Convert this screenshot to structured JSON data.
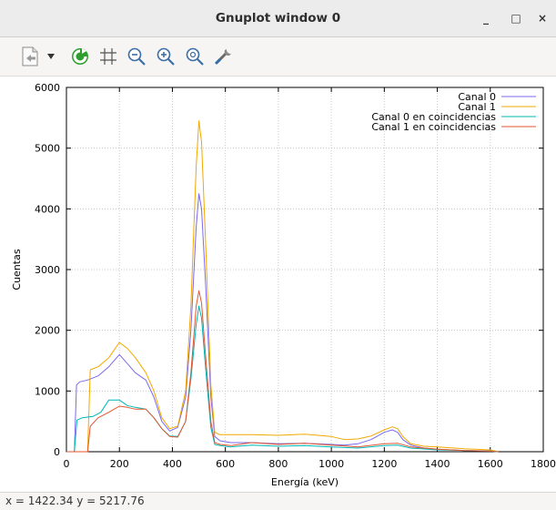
{
  "window": {
    "title": "Gnuplot window 0",
    "minimize_label": "_",
    "maximize_label": "□",
    "close_label": "×"
  },
  "toolbar": {
    "icons": [
      "copy-clipboard-icon",
      "dropdown-arrow-icon",
      "replot-icon",
      "grid-icon",
      "zoom-prev-icon",
      "zoom-next-icon",
      "autoscale-icon",
      "settings-icon"
    ]
  },
  "status": {
    "coords": "x = 1422.34 y = 5217.76"
  },
  "chart_data": {
    "type": "line",
    "title": "",
    "xlabel": "Energía (keV)",
    "ylabel": "Cuentas",
    "xlim": [
      0,
      1800
    ],
    "ylim": [
      0,
      6000
    ],
    "xticks": [
      0,
      200,
      400,
      600,
      800,
      1000,
      1200,
      1400,
      1600,
      1800
    ],
    "yticks": [
      0,
      1000,
      2000,
      3000,
      4000,
      5000,
      6000
    ],
    "grid": true,
    "legend_position": "top-right",
    "series": [
      {
        "name": "Canal 0",
        "color": "#7b68ee",
        "x": [
          0,
          30,
          38,
          50,
          80,
          120,
          160,
          200,
          230,
          260,
          300,
          330,
          360,
          390,
          420,
          450,
          470,
          490,
          500,
          510,
          525,
          545,
          560,
          580,
          620,
          700,
          800,
          900,
          1000,
          1050,
          1100,
          1150,
          1200,
          1230,
          1250,
          1270,
          1300,
          1350,
          1400,
          1500,
          1600,
          1630
        ],
        "y": [
          0,
          0,
          1100,
          1150,
          1180,
          1250,
          1400,
          1600,
          1450,
          1300,
          1180,
          900,
          500,
          340,
          400,
          900,
          2000,
          3700,
          4250,
          4000,
          2800,
          900,
          250,
          180,
          150,
          150,
          130,
          140,
          120,
          110,
          130,
          200,
          320,
          360,
          320,
          200,
          110,
          60,
          40,
          20,
          10,
          0
        ]
      },
      {
        "name": "Canal 1",
        "color": "#f2a900",
        "x": [
          0,
          80,
          90,
          120,
          160,
          200,
          230,
          260,
          300,
          330,
          360,
          390,
          420,
          450,
          470,
          490,
          500,
          510,
          525,
          545,
          560,
          580,
          620,
          700,
          800,
          900,
          1000,
          1050,
          1100,
          1150,
          1200,
          1230,
          1250,
          1270,
          1300,
          1350,
          1400,
          1500,
          1600,
          1630
        ],
        "y": [
          0,
          0,
          1350,
          1400,
          1550,
          1800,
          1700,
          1550,
          1300,
          1000,
          560,
          380,
          420,
          1000,
          2400,
          4700,
          5450,
          5100,
          3500,
          1100,
          320,
          280,
          280,
          280,
          270,
          290,
          250,
          200,
          210,
          260,
          360,
          410,
          380,
          250,
          130,
          90,
          80,
          50,
          30,
          0
        ]
      },
      {
        "name": "Canal 0 en coincidencias",
        "color": "#00b7b7",
        "x": [
          0,
          30,
          40,
          60,
          100,
          130,
          160,
          200,
          230,
          260,
          300,
          330,
          360,
          390,
          420,
          450,
          470,
          490,
          500,
          510,
          525,
          545,
          560,
          580,
          620,
          700,
          800,
          900,
          1000,
          1100,
          1200,
          1250,
          1300,
          1400,
          1500,
          1600,
          1630
        ],
        "y": [
          0,
          0,
          520,
          560,
          580,
          650,
          850,
          850,
          760,
          730,
          700,
          560,
          380,
          260,
          250,
          500,
          1200,
          2100,
          2400,
          2200,
          1400,
          400,
          120,
          100,
          80,
          110,
          90,
          100,
          80,
          60,
          100,
          110,
          60,
          30,
          20,
          10,
          0
        ]
      },
      {
        "name": "Canal 1 en coincidencias",
        "color": "#e3562e",
        "x": [
          0,
          80,
          90,
          120,
          160,
          200,
          230,
          260,
          300,
          330,
          360,
          390,
          420,
          450,
          470,
          490,
          500,
          510,
          525,
          545,
          560,
          580,
          620,
          700,
          800,
          900,
          1000,
          1100,
          1200,
          1250,
          1300,
          1400,
          1500,
          1600,
          1630
        ],
        "y": [
          0,
          0,
          420,
          560,
          650,
          750,
          730,
          700,
          700,
          560,
          380,
          250,
          240,
          500,
          1300,
          2400,
          2650,
          2450,
          1600,
          500,
          150,
          120,
          100,
          150,
          120,
          140,
          110,
          80,
          130,
          140,
          80,
          40,
          20,
          10,
          0
        ]
      }
    ]
  }
}
